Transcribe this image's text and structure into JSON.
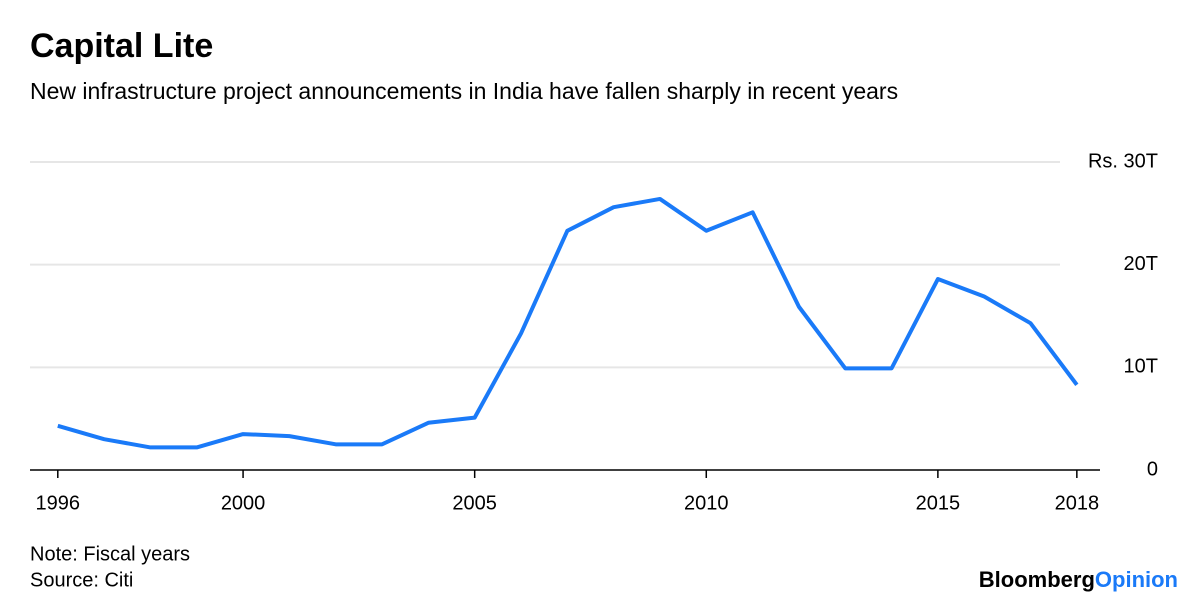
{
  "chart_data": {
    "type": "line",
    "title": "Capital Lite",
    "subtitle": "New infrastructure project announcements in India have fallen sharply in recent years",
    "x": [
      1996,
      1997,
      1998,
      1999,
      2000,
      2001,
      2002,
      2003,
      2004,
      2005,
      2006,
      2007,
      2008,
      2009,
      2010,
      2011,
      2012,
      2013,
      2014,
      2015,
      2016,
      2017,
      2018
    ],
    "series": [
      {
        "name": "Infrastructure project announcements",
        "color": "#1a7af8",
        "values": [
          4.3,
          3.0,
          2.2,
          2.2,
          3.5,
          3.3,
          2.5,
          2.5,
          4.6,
          5.1,
          13.3,
          23.3,
          25.6,
          26.4,
          23.3,
          25.1,
          15.9,
          9.9,
          9.9,
          18.6,
          16.9,
          14.3,
          8.3
        ]
      }
    ],
    "xlim": [
      1995.4,
      2018.5
    ],
    "xticks": [
      1996,
      2000,
      2005,
      2010,
      2015,
      2018
    ],
    "ylim": [
      0,
      30
    ],
    "yticks": [
      0,
      {
        "value": 10,
        "label": "10T"
      },
      {
        "value": 20,
        "label": "20T"
      },
      {
        "value": 30,
        "label": "Rs. 30T"
      }
    ],
    "grid": true,
    "notes": [
      "Note: Fiscal years",
      "Source: Citi"
    ],
    "logo": [
      "Bloomberg",
      "Opinion"
    ]
  }
}
